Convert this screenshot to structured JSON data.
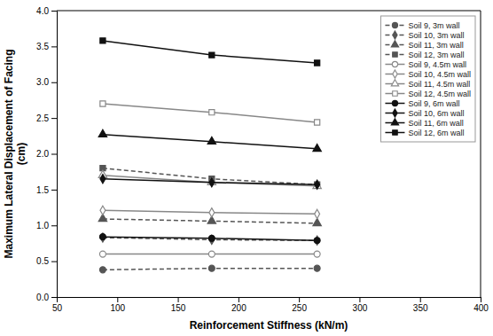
{
  "chart_data": {
    "type": "line",
    "x": [
      88,
      178,
      265
    ],
    "series": [
      {
        "name": "Soil 9, 3m wall",
        "values": [
          0.38,
          0.4,
          0.4
        ],
        "line_style": "dashed",
        "marker": "circle",
        "color": "#555555"
      },
      {
        "name": "Soil 10, 3m wall",
        "values": [
          0.83,
          0.8,
          0.79
        ],
        "line_style": "dashed",
        "marker": "diamond",
        "color": "#555555"
      },
      {
        "name": "Soil 11, 3m wall",
        "values": [
          1.09,
          1.06,
          1.03
        ],
        "line_style": "dashed",
        "marker": "triangle",
        "color": "#555555"
      },
      {
        "name": "Soil 12, 3m wall",
        "values": [
          1.8,
          1.65,
          1.57
        ],
        "line_style": "dashed",
        "marker": "square",
        "color": "#555555"
      },
      {
        "name": "Soil 9, 4.5m wall",
        "values": [
          0.6,
          0.6,
          0.6
        ],
        "line_style": "solid",
        "marker": "circle-open",
        "color": "#888888"
      },
      {
        "name": "Soil 10, 4.5m wall",
        "values": [
          1.21,
          1.18,
          1.16
        ],
        "line_style": "solid",
        "marker": "diamond-open",
        "color": "#888888"
      },
      {
        "name": "Soil 11, 4.5m wall",
        "values": [
          1.7,
          1.6,
          1.55
        ],
        "line_style": "solid",
        "marker": "triangle-open",
        "color": "#888888"
      },
      {
        "name": "Soil 12, 4.5m wall",
        "values": [
          2.7,
          2.58,
          2.44
        ],
        "line_style": "solid",
        "marker": "square-open",
        "color": "#888888"
      },
      {
        "name": "Soil 9, 6m wall",
        "values": [
          0.84,
          0.82,
          0.79
        ],
        "line_style": "solid",
        "marker": "circle",
        "color": "#111111"
      },
      {
        "name": "Soil 10, 6m wall",
        "values": [
          1.65,
          1.6,
          1.57
        ],
        "line_style": "solid",
        "marker": "diamond",
        "color": "#111111"
      },
      {
        "name": "Soil 11, 6m wall",
        "values": [
          2.27,
          2.17,
          2.07
        ],
        "line_style": "solid",
        "marker": "triangle",
        "color": "#111111"
      },
      {
        "name": "Soil 12, 6m wall",
        "values": [
          3.58,
          3.38,
          3.27
        ],
        "line_style": "solid",
        "marker": "square",
        "color": "#111111"
      }
    ],
    "xlabel": "Reinforcement Stiffness (kN/m)",
    "ylabel": "Maximum Lateral Displacement of Facing\n(cm)",
    "xlim": [
      50,
      400
    ],
    "ylim": [
      0,
      4
    ],
    "xticks": [
      50,
      100,
      150,
      200,
      250,
      300,
      350,
      400
    ],
    "yticks": [
      {
        "value": 0,
        "label": "0.0"
      },
      0.5,
      {
        "value": 1.0,
        "label": "1.0"
      },
      1.5,
      {
        "value": 2.0,
        "label": "2.0"
      },
      2.5,
      {
        "value": 3.0,
        "label": "3.0"
      },
      3.5,
      {
        "value": 4.0,
        "label": "4.0"
      }
    ],
    "grid": false,
    "legend": "upper right"
  }
}
